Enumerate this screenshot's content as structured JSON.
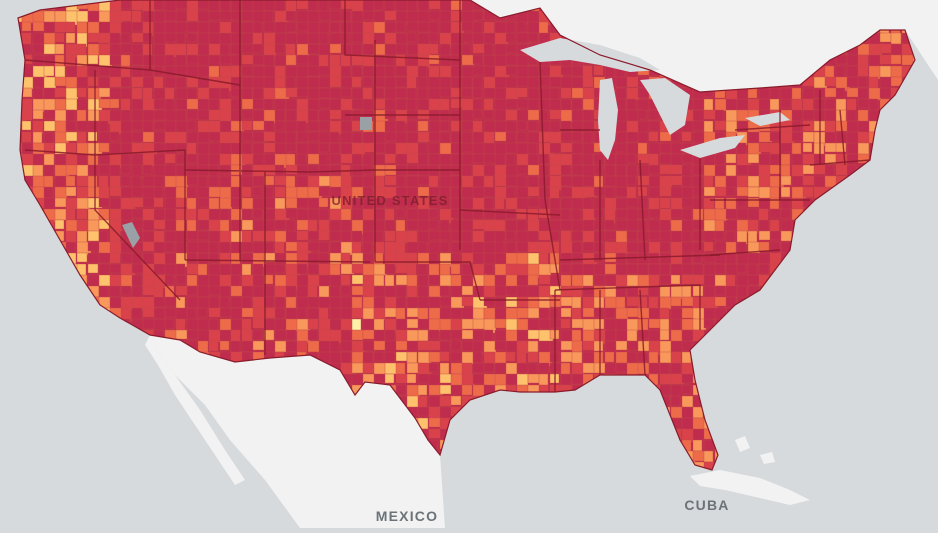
{
  "map": {
    "labels": {
      "country": "UNITED STATES",
      "south": "MEXICO",
      "island": "CUBA"
    },
    "colors": {
      "water": "#d6dadc",
      "land": "#f2f2f2",
      "state_border": "#8a1b2c",
      "no_data": "#9aa1a6"
    },
    "choropleth_palette": [
      "#fff2a8",
      "#fdc26b",
      "#f8985a",
      "#ee6b4a",
      "#d9414b",
      "#bf2c4d"
    ],
    "legend_visible": false,
    "state_borders_visible": true
  }
}
